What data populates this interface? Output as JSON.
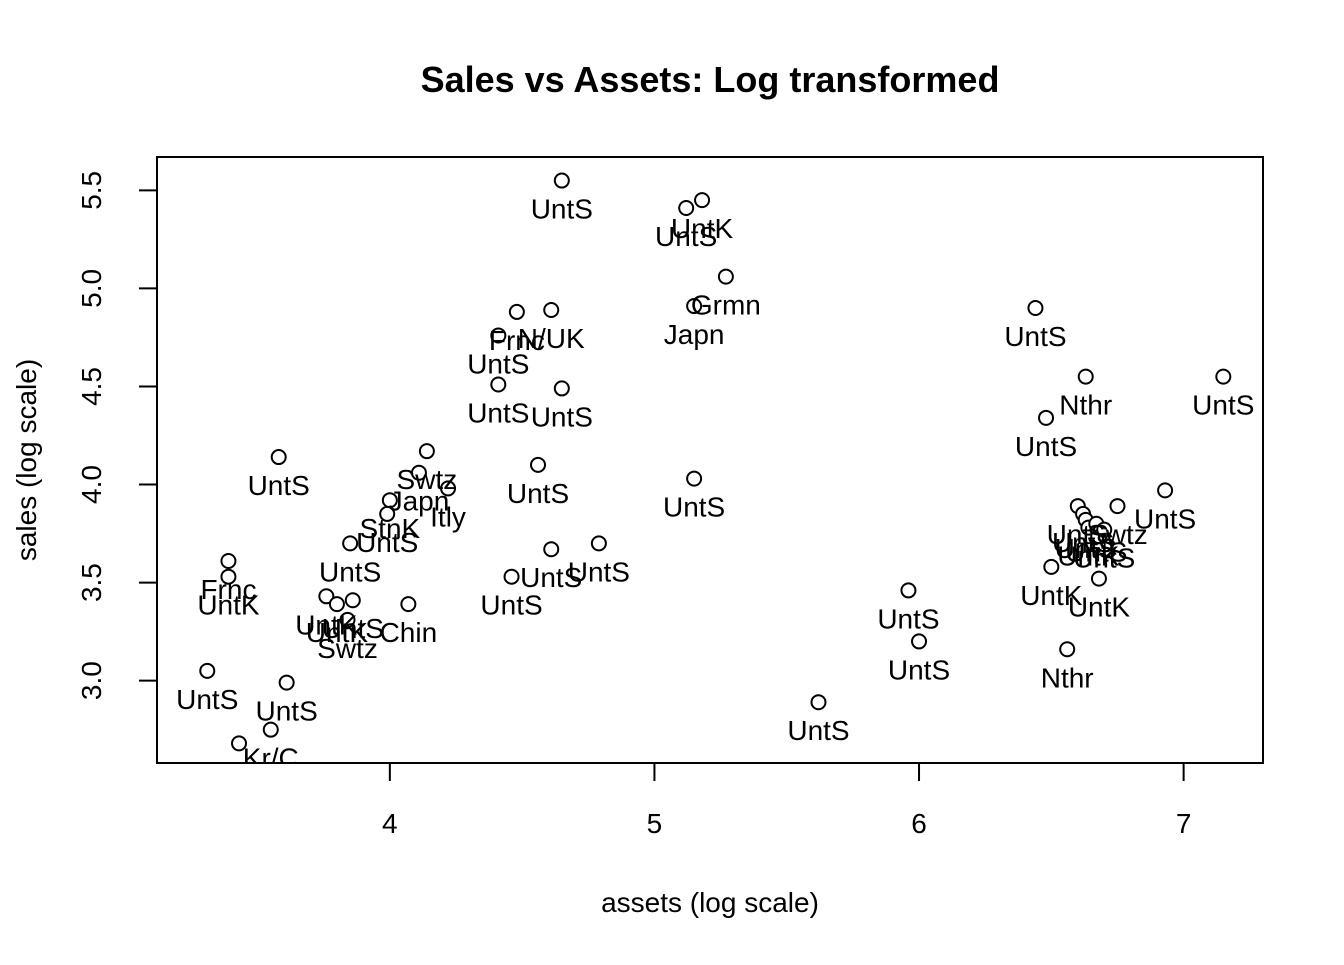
{
  "chart_data": {
    "type": "scatter",
    "title": "Sales vs Assets: Log transformed",
    "xlabel": "assets (log scale)",
    "ylabel": "sales (log scale)",
    "xlim": [
      3.12,
      7.3
    ],
    "ylim": [
      2.58,
      5.67
    ],
    "xticks": [
      "4",
      "5",
      "6",
      "7"
    ],
    "yticks": [
      "3.0",
      "3.5",
      "4.0",
      "4.5",
      "5.0",
      "5.5"
    ],
    "grid": false,
    "colors": {
      "marker_stroke": "#000000",
      "marker_fill": "#ffffff",
      "text": "#000000"
    },
    "points": [
      {
        "x": 4.65,
        "y": 5.55,
        "label": "UntS"
      },
      {
        "x": 5.18,
        "y": 5.45,
        "label": "UntK"
      },
      {
        "x": 5.12,
        "y": 5.41,
        "label": "UntS"
      },
      {
        "x": 5.27,
        "y": 5.06,
        "label": "Grmn"
      },
      {
        "x": 5.15,
        "y": 4.91,
        "label": "Japn"
      },
      {
        "x": 4.61,
        "y": 4.89,
        "label": "N/UK"
      },
      {
        "x": 4.48,
        "y": 4.88,
        "label": "Frnc"
      },
      {
        "x": 4.65,
        "y": 4.49,
        "label": "UntS"
      },
      {
        "x": 4.41,
        "y": 4.51,
        "label": "UntS"
      },
      {
        "x": 4.41,
        "y": 4.76,
        "label": "UntS"
      },
      {
        "x": 3.58,
        "y": 4.14,
        "label": "UntS"
      },
      {
        "x": 4.14,
        "y": 4.17,
        "label": "Swtz"
      },
      {
        "x": 4.11,
        "y": 4.06,
        "label": "Japn"
      },
      {
        "x": 4.22,
        "y": 3.98,
        "label": "Itly"
      },
      {
        "x": 4.0,
        "y": 3.92,
        "label": "StnK"
      },
      {
        "x": 3.99,
        "y": 3.85,
        "label": "UntS"
      },
      {
        "x": 3.85,
        "y": 3.7,
        "label": "UntS"
      },
      {
        "x": 4.56,
        "y": 4.1,
        "label": "UntS"
      },
      {
        "x": 5.15,
        "y": 4.03,
        "label": "UntS"
      },
      {
        "x": 4.79,
        "y": 3.7,
        "label": "UntS"
      },
      {
        "x": 4.61,
        "y": 3.67,
        "label": "UntS"
      },
      {
        "x": 4.46,
        "y": 3.53,
        "label": "UntS"
      },
      {
        "x": 3.39,
        "y": 3.61,
        "label": "Frnc"
      },
      {
        "x": 3.39,
        "y": 3.53,
        "label": "UntK"
      },
      {
        "x": 3.76,
        "y": 3.43,
        "label": "UntK"
      },
      {
        "x": 3.86,
        "y": 3.41,
        "label": "UntS"
      },
      {
        "x": 3.8,
        "y": 3.39,
        "label": "UntK"
      },
      {
        "x": 4.07,
        "y": 3.39,
        "label": "Chin"
      },
      {
        "x": 3.84,
        "y": 3.31,
        "label": "Swtz"
      },
      {
        "x": 3.31,
        "y": 3.05,
        "label": "UntS"
      },
      {
        "x": 3.61,
        "y": 2.99,
        "label": "UntS"
      },
      {
        "x": 3.55,
        "y": 2.75,
        "label": "Kr/C"
      },
      {
        "x": 3.43,
        "y": 2.68,
        "label": "UntS"
      },
      {
        "x": 6.44,
        "y": 4.9,
        "label": "UntS"
      },
      {
        "x": 6.63,
        "y": 4.55,
        "label": "Nthr"
      },
      {
        "x": 7.15,
        "y": 4.55,
        "label": "UntS"
      },
      {
        "x": 6.48,
        "y": 4.34,
        "label": "UntS"
      },
      {
        "x": 6.93,
        "y": 3.97,
        "label": "UntS"
      },
      {
        "x": 6.75,
        "y": 3.89,
        "label": "Swtz"
      },
      {
        "x": 6.6,
        "y": 3.89,
        "label": "UntS"
      },
      {
        "x": 6.62,
        "y": 3.85,
        "label": "UntS"
      },
      {
        "x": 6.63,
        "y": 3.82,
        "label": "UntS"
      },
      {
        "x": 6.64,
        "y": 3.78,
        "label": "UntK"
      },
      {
        "x": 6.67,
        "y": 3.8,
        "label": "UntS"
      },
      {
        "x": 6.7,
        "y": 3.77,
        "label": "UntS"
      },
      {
        "x": 6.5,
        "y": 3.58,
        "label": "UntK"
      },
      {
        "x": 6.68,
        "y": 3.52,
        "label": "UntK"
      },
      {
        "x": 6.56,
        "y": 3.16,
        "label": "Nthr"
      },
      {
        "x": 5.96,
        "y": 3.46,
        "label": "UntS"
      },
      {
        "x": 6.0,
        "y": 3.2,
        "label": "UntS"
      },
      {
        "x": 5.62,
        "y": 2.89,
        "label": "UntS"
      }
    ]
  }
}
